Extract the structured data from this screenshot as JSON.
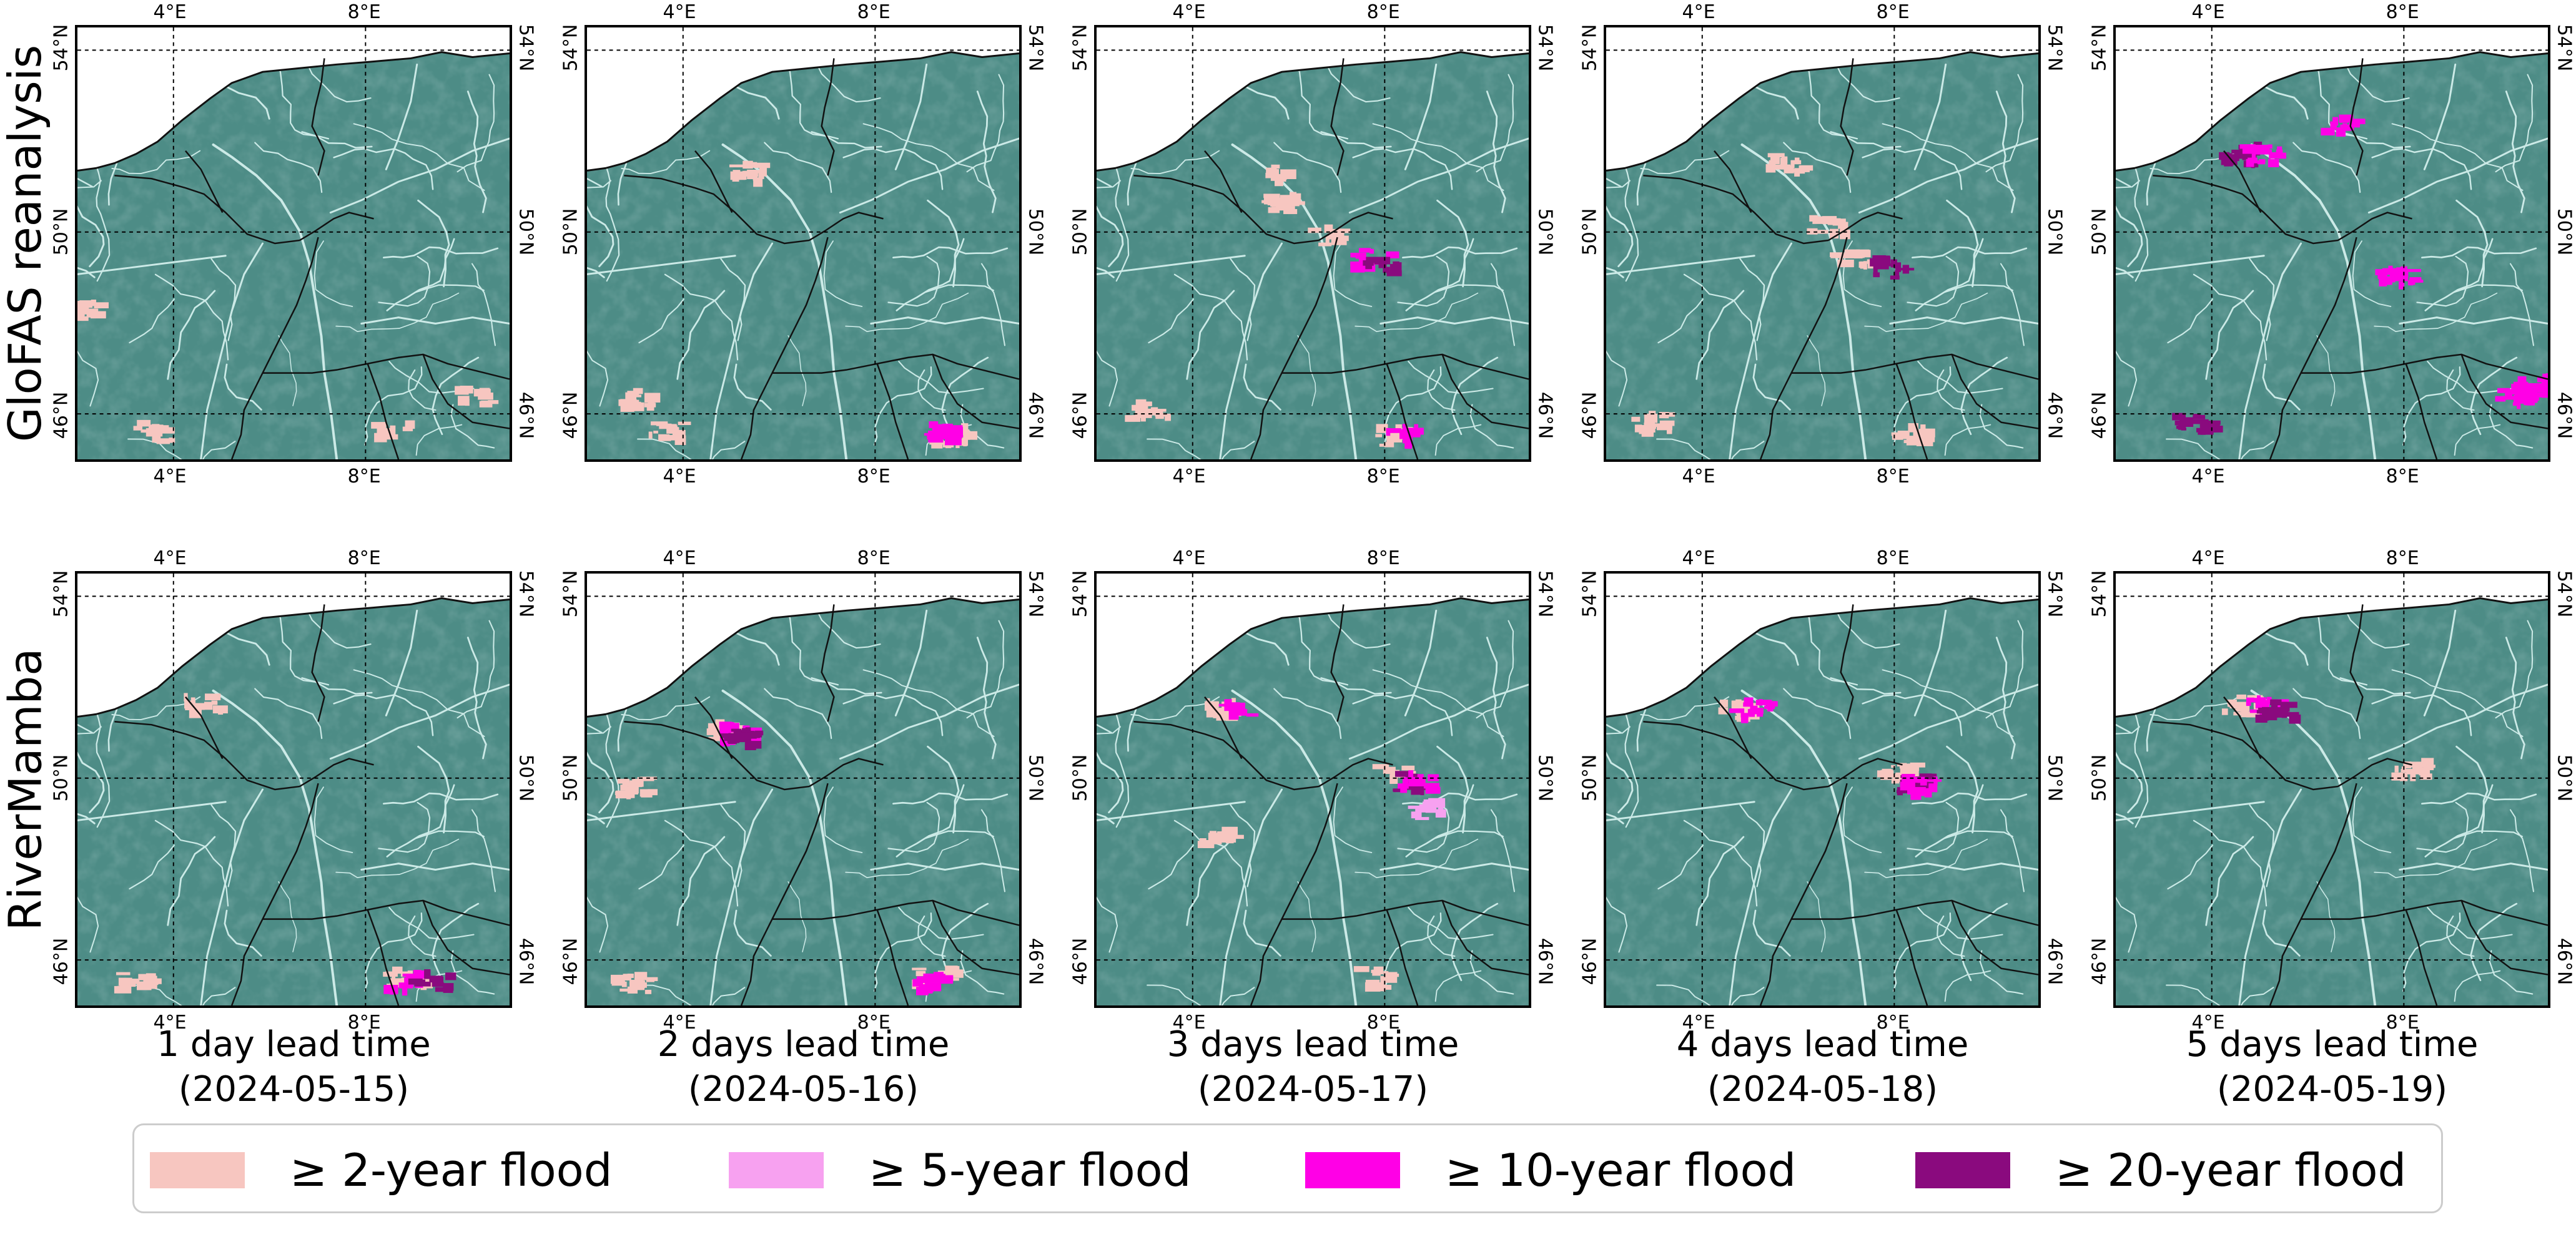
{
  "rows": [
    {
      "label": "GloFAS reanalysis"
    },
    {
      "label": "RiverMamba"
    }
  ],
  "columns": [
    {
      "line1": "1 day lead time",
      "line2": "(2024-05-15)"
    },
    {
      "line1": "2 days lead time",
      "line2": "(2024-05-16)"
    },
    {
      "line1": "3 days lead time",
      "line2": "(2024-05-17)"
    },
    {
      "line1": "4 days lead time",
      "line2": "(2024-05-18)"
    },
    {
      "line1": "5 days lead time",
      "line2": "(2024-05-19)"
    }
  ],
  "ticks": {
    "lon": [
      "4°E",
      "8°E"
    ],
    "lat": [
      "54°N",
      "50°N",
      "46°N"
    ]
  },
  "legend": [
    {
      "label": "≥  2-year flood",
      "color": "#f7c6c0"
    },
    {
      "label": "≥  5-year flood",
      "color": "#f7a1f0"
    },
    {
      "label": "≥  10-year flood",
      "color": "#ff00e6"
    },
    {
      "label": "≥  20-year flood",
      "color": "#8a0a7e"
    }
  ],
  "colors": {
    "land": "#4d8c86",
    "sea": "#ffffff",
    "rivers": "#d9f4f1",
    "borders": "#111111"
  },
  "flood_patches": [
    [
      [
        {
          "category": 0,
          "lon": 3.6,
          "lat": 45.6
        },
        {
          "category": 0,
          "lon": 8.6,
          "lat": 45.6
        },
        {
          "category": 0,
          "lon": 10.3,
          "lat": 46.4
        },
        {
          "category": 0,
          "lon": 2.2,
          "lat": 48.3
        }
      ],
      [
        {
          "category": 0,
          "lon": 3.7,
          "lat": 45.6
        },
        {
          "category": 0,
          "lon": 3.0,
          "lat": 46.3
        },
        {
          "category": 0,
          "lon": 9.6,
          "lat": 45.5
        },
        {
          "category": 2,
          "lon": 9.5,
          "lat": 45.6
        },
        {
          "category": 0,
          "lon": 5.4,
          "lat": 51.3
        }
      ],
      [
        {
          "category": 0,
          "lon": 5.9,
          "lat": 50.6
        },
        {
          "category": 0,
          "lon": 6.8,
          "lat": 49.9
        },
        {
          "category": 2,
          "lon": 7.8,
          "lat": 49.4
        },
        {
          "category": 3,
          "lon": 7.9,
          "lat": 49.2
        },
        {
          "category": 0,
          "lon": 5.8,
          "lat": 51.3
        },
        {
          "category": 0,
          "lon": 8.2,
          "lat": 45.5
        },
        {
          "category": 2,
          "lon": 8.4,
          "lat": 45.5
        },
        {
          "category": 0,
          "lon": 3.1,
          "lat": 46.1
        }
      ],
      [
        {
          "category": 0,
          "lon": 6.6,
          "lat": 50.1
        },
        {
          "category": 0,
          "lon": 7.2,
          "lat": 49.4
        },
        {
          "category": 3,
          "lon": 7.9,
          "lat": 49.2
        },
        {
          "category": 0,
          "lon": 5.8,
          "lat": 51.5
        },
        {
          "category": 0,
          "lon": 3.0,
          "lat": 45.8
        },
        {
          "category": 0,
          "lon": 8.4,
          "lat": 45.5
        }
      ],
      [
        {
          "category": 3,
          "lon": 4.6,
          "lat": 51.7
        },
        {
          "category": 2,
          "lon": 5.1,
          "lat": 51.7
        },
        {
          "category": 2,
          "lon": 7.9,
          "lat": 49.0
        },
        {
          "category": 3,
          "lon": 3.7,
          "lat": 45.8
        },
        {
          "category": 2,
          "lon": 10.3,
          "lat": 46.4
        },
        {
          "category": 2,
          "lon": 10.8,
          "lat": 46.6
        },
        {
          "category": 2,
          "lon": 6.7,
          "lat": 52.4
        }
      ]
    ],
    [
      [
        {
          "category": 0,
          "lon": 4.6,
          "lat": 51.6
        },
        {
          "category": 0,
          "lon": 8.9,
          "lat": 45.6
        },
        {
          "category": 2,
          "lon": 8.9,
          "lat": 45.5
        },
        {
          "category": 3,
          "lon": 9.4,
          "lat": 45.5
        },
        {
          "category": 0,
          "lon": 3.3,
          "lat": 45.5
        }
      ],
      [
        {
          "category": 0,
          "lon": 4.9,
          "lat": 51.0
        },
        {
          "category": 2,
          "lon": 5.2,
          "lat": 51.0
        },
        {
          "category": 3,
          "lon": 5.3,
          "lat": 50.9
        },
        {
          "category": 0,
          "lon": 3.0,
          "lat": 49.8
        },
        {
          "category": 0,
          "lon": 9.3,
          "lat": 45.6
        },
        {
          "category": 2,
          "lon": 9.2,
          "lat": 45.5
        },
        {
          "category": 0,
          "lon": 3.0,
          "lat": 45.5
        }
      ],
      [
        {
          "category": 0,
          "lon": 4.6,
          "lat": 51.5
        },
        {
          "category": 2,
          "lon": 5.0,
          "lat": 51.5
        },
        {
          "category": 0,
          "lon": 8.2,
          "lat": 50.1
        },
        {
          "category": 3,
          "lon": 8.4,
          "lat": 49.9
        },
        {
          "category": 2,
          "lon": 8.7,
          "lat": 49.9
        },
        {
          "category": 1,
          "lon": 9.0,
          "lat": 49.3
        },
        {
          "category": 0,
          "lon": 4.6,
          "lat": 48.7
        },
        {
          "category": 0,
          "lon": 7.9,
          "lat": 45.6
        }
      ],
      [
        {
          "category": 0,
          "lon": 4.8,
          "lat": 51.5
        },
        {
          "category": 2,
          "lon": 5.1,
          "lat": 51.5
        },
        {
          "category": 0,
          "lon": 8.2,
          "lat": 50.1
        },
        {
          "category": 3,
          "lon": 8.5,
          "lat": 49.9
        },
        {
          "category": 2,
          "lon": 8.6,
          "lat": 49.8
        }
      ],
      [
        {
          "category": 0,
          "lon": 4.6,
          "lat": 51.6
        },
        {
          "category": 2,
          "lon": 5.1,
          "lat": 51.6
        },
        {
          "category": 3,
          "lon": 5.4,
          "lat": 51.5
        },
        {
          "category": 0,
          "lon": 8.2,
          "lat": 50.2
        }
      ]
    ]
  ]
}
